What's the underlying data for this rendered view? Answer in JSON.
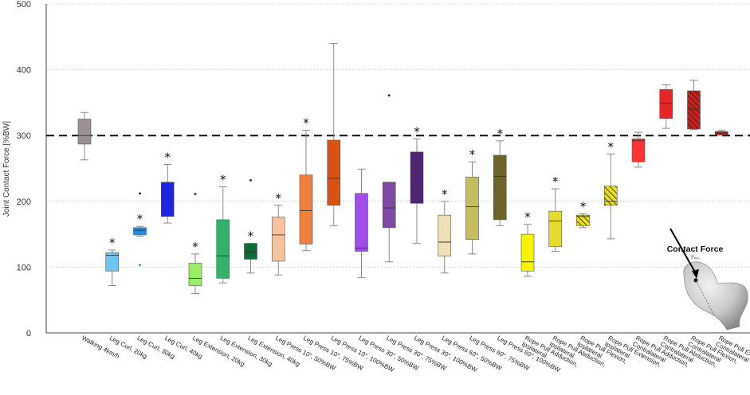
{
  "chart_data": {
    "type": "boxplot",
    "ylabel": "Joint Contact Force [%BW]",
    "ylim": [
      0,
      500
    ],
    "yticks": [
      0,
      100,
      200,
      300,
      400,
      500
    ],
    "grid": "dotted horizontal",
    "reference_line": 300,
    "categories": [
      "Walking 4km/h",
      "Leg Curl, 20kg",
      "Leg Curl, 30kg",
      "Leg Curl, 40kg",
      "Leg Extension, 20kg",
      "Leg Extension, 30kg",
      "Leg Extension, 40kg",
      "Leg Press 10°, 50%BW",
      "Leg Press 10°, 75%BW",
      "Leg Press 10°, 100%BW",
      "Leg Press 30°, 50%BW",
      "Leg Press 30°, 75%BW",
      "Leg Press 30°, 100%BW",
      "Leg Press 60°, 50%BW",
      "Leg Press 60°, 75%BW",
      "Leg Press 60°, 100%BW",
      "Rope Pull, Adduction, Ipsilateral",
      "Rope Pull, Abduction, Ipsilateral",
      "Rope Pull, Flexion, Ipsilateral",
      "Rope Pull, Extension, Ipsilateral",
      "Rope Pull, Adduction, Contralateral",
      "Rope Pull, Abduction, Contralateral",
      "Rope Pull, Flexion, Contralateral",
      "Rope Pull, Extension, Contralateral"
    ],
    "boxes": [
      {
        "min": 263,
        "q1": 287,
        "median": 300,
        "q3": 325,
        "max": 335,
        "color": "#9a8f92",
        "star": false,
        "pattern": false,
        "outliers": []
      },
      {
        "min": 72,
        "q1": 94,
        "median": 118,
        "q3": 122,
        "max": 126,
        "color": "#6ac7f2",
        "star": true,
        "pattern": false,
        "outliers": []
      },
      {
        "min": 147,
        "q1": 149,
        "median": 156,
        "q3": 160,
        "max": 162,
        "color": "#2a8ad8",
        "star": true,
        "pattern": false,
        "outliers": [
          212,
          103
        ]
      },
      {
        "min": 167,
        "q1": 177,
        "median": 209,
        "q3": 229,
        "max": 256,
        "color": "#1f24e0",
        "star": true,
        "pattern": false,
        "outliers": []
      },
      {
        "min": 60,
        "q1": 72,
        "median": 83,
        "q3": 106,
        "max": 120,
        "color": "#99ee66",
        "star": true,
        "pattern": false,
        "outliers": [
          211
        ]
      },
      {
        "min": 76,
        "q1": 83,
        "median": 117,
        "q3": 172,
        "max": 222,
        "color": "#33b36a",
        "star": true,
        "pattern": false,
        "outliers": []
      },
      {
        "min": 91,
        "q1": 112,
        "median": 123,
        "q3": 136,
        "max": 136,
        "color": "#0d6b38",
        "star": true,
        "pattern": false,
        "outliers": [
          232
        ]
      },
      {
        "min": 88,
        "q1": 109,
        "median": 149,
        "q3": 176,
        "max": 194,
        "color": "#f5c3a0",
        "star": true,
        "pattern": false,
        "outliers": []
      },
      {
        "min": 125,
        "q1": 135,
        "median": 186,
        "q3": 240,
        "max": 308,
        "color": "#f08040",
        "star": true,
        "pattern": false,
        "outliers": []
      },
      {
        "min": 163,
        "q1": 194,
        "median": 235,
        "q3": 293,
        "max": 440,
        "color": "#d85212",
        "star": false,
        "pattern": false,
        "outliers": []
      },
      {
        "min": 84,
        "q1": 124,
        "median": 129,
        "q3": 212,
        "max": 249,
        "color": "#a14ee8",
        "star": false,
        "pattern": false,
        "outliers": []
      },
      {
        "min": 108,
        "q1": 160,
        "median": 190,
        "q3": 229,
        "max": 229,
        "color": "#7f4aa6",
        "star": false,
        "pattern": false,
        "outliers": [
          361
        ]
      },
      {
        "min": 136,
        "q1": 197,
        "median": 251,
        "q3": 275,
        "max": 295,
        "color": "#4f2472",
        "star": true,
        "pattern": false,
        "outliers": []
      },
      {
        "min": 91,
        "q1": 117,
        "median": 138,
        "q3": 179,
        "max": 200,
        "color": "#ede0b4",
        "star": true,
        "pattern": false,
        "outliers": []
      },
      {
        "min": 120,
        "q1": 142,
        "median": 192,
        "q3": 237,
        "max": 260,
        "color": "#c9bb62",
        "star": true,
        "pattern": false,
        "outliers": []
      },
      {
        "min": 163,
        "q1": 172,
        "median": 238,
        "q3": 270,
        "max": 292,
        "color": "#6c6428",
        "star": true,
        "pattern": false,
        "outliers": []
      },
      {
        "min": 86,
        "q1": 94,
        "median": 108,
        "q3": 150,
        "max": 165,
        "color": "#f7f200",
        "star": true,
        "pattern": false,
        "outliers": []
      },
      {
        "min": 124,
        "q1": 131,
        "median": 170,
        "q3": 185,
        "max": 219,
        "color": "#e4dc2c",
        "star": true,
        "pattern": false,
        "outliers": []
      },
      {
        "min": 160,
        "q1": 163,
        "median": 177,
        "q3": 179,
        "max": 181,
        "color": "#e8df20",
        "star": true,
        "pattern": true,
        "outliers": []
      },
      {
        "min": 143,
        "q1": 194,
        "median": 200,
        "q3": 223,
        "max": 272,
        "color": "#e8df20",
        "star": true,
        "pattern": true,
        "outliers": []
      },
      {
        "min": 252,
        "q1": 260,
        "median": 292,
        "q3": 295,
        "max": 305,
        "color": "#ff3333",
        "star": false,
        "pattern": false,
        "outliers": []
      },
      {
        "min": 311,
        "q1": 326,
        "median": 349,
        "q3": 370,
        "max": 377,
        "color": "#e32626",
        "star": false,
        "pattern": false,
        "outliers": []
      },
      {
        "min": 309,
        "q1": 310,
        "median": 340,
        "q3": 368,
        "max": 384,
        "color": "#c81f1f",
        "star": false,
        "pattern": true,
        "outliers": []
      },
      {
        "min": 301,
        "q1": 301,
        "median": 304,
        "q3": 306,
        "max": 308,
        "color": "#c81f1f",
        "star": false,
        "pattern": true,
        "outliers": []
      }
    ],
    "annotation": {
      "title": "Contact Force",
      "subtitle": "Fᵣₑₛ"
    }
  },
  "labels": {
    "star": "*",
    "walking_unit_note": "Walking 4km/h"
  }
}
